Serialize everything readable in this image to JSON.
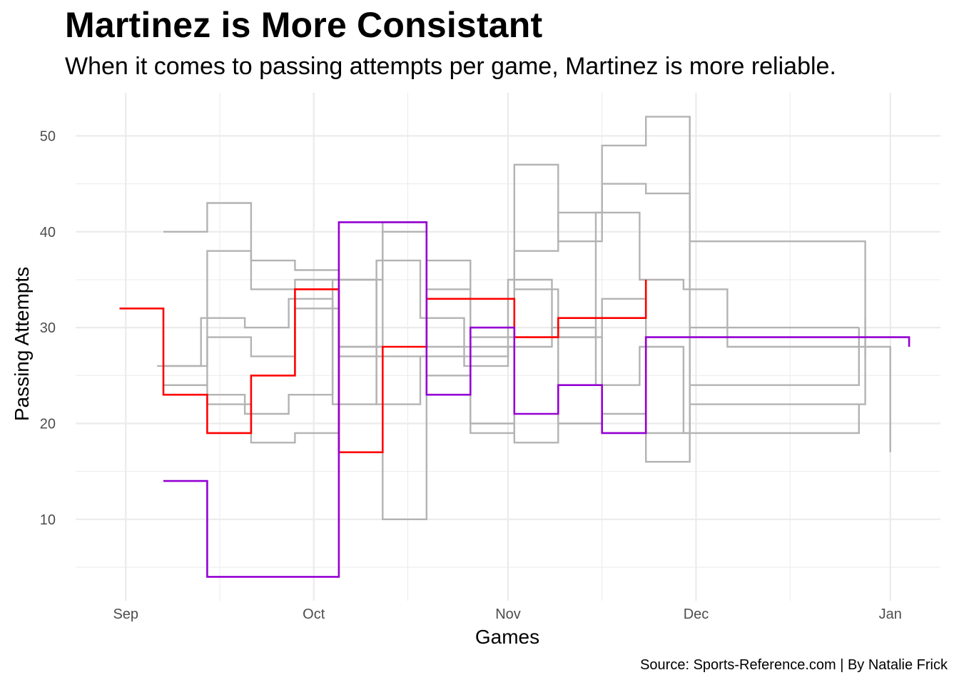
{
  "header": {
    "title": "Martinez is More Consistant",
    "subtitle": "When it comes to passing attempts per game, Martinez is more reliable."
  },
  "caption": "Source: Sports-Reference.com | By Natalie Frick",
  "colors": {
    "background": "#ffffff",
    "grid": "#ebebeb",
    "others": "#b3b3b3",
    "martinez": "#ff0000",
    "highlight2": "#9400d3"
  },
  "chart_data": {
    "type": "line",
    "step": true,
    "xlabel": "Games",
    "ylabel": "Passing Attempts",
    "x_type": "date",
    "xlim": [
      "2019-08-24",
      "2020-01-09"
    ],
    "ylim": [
      1.5,
      54.5
    ],
    "x_ticks": [
      {
        "date": "2019-09-01",
        "label": "Sep"
      },
      {
        "date": "2019-10-01",
        "label": "Oct"
      },
      {
        "date": "2019-11-01",
        "label": "Nov"
      },
      {
        "date": "2019-12-01",
        "label": "Dec"
      },
      {
        "date": "2020-01-01",
        "label": "Jan"
      }
    ],
    "y_ticks": [
      10,
      20,
      30,
      40,
      50
    ],
    "grid": true,
    "legend": "none",
    "background_series": [
      {
        "x": [
          "2019-09-07",
          "2019-09-14",
          "2019-09-21",
          "2019-09-28",
          "2019-10-05",
          "2019-10-12",
          "2019-10-19",
          "2019-10-26",
          "2019-11-02",
          "2019-11-09",
          "2019-11-16",
          "2019-11-23",
          "2019-11-30",
          "2019-12-28"
        ],
        "y": [
          40,
          43,
          37,
          36,
          35,
          40,
          37,
          29,
          38,
          42,
          49,
          52,
          39,
          27
        ]
      },
      {
        "x": [
          "2019-09-07",
          "2019-09-14",
          "2019-09-21",
          "2019-09-28",
          "2019-10-05",
          "2019-10-12",
          "2019-10-19",
          "2019-10-26",
          "2019-11-02",
          "2019-11-09",
          "2019-11-16",
          "2019-11-23",
          "2019-11-30",
          "2019-12-28"
        ],
        "y": [
          26,
          38,
          34,
          35,
          28,
          41,
          34,
          20,
          47,
          39,
          45,
          44,
          22,
          31
        ]
      },
      {
        "x": [
          "2019-09-06",
          "2019-09-13",
          "2019-09-20",
          "2019-09-27",
          "2019-10-04",
          "2019-10-11",
          "2019-10-18",
          "2019-10-25",
          "2019-11-01",
          "2019-11-08",
          "2019-11-15",
          "2019-11-22",
          "2019-11-29",
          "2019-12-06",
          "2020-01-01"
        ],
        "y": [
          26,
          31,
          30,
          33,
          22,
          37,
          31,
          26,
          35,
          29,
          42,
          35,
          34,
          28,
          17
        ]
      },
      {
        "x": [
          "2019-09-07",
          "2019-09-14",
          "2019-09-21",
          "2019-09-28",
          "2019-10-05",
          "2019-10-12",
          "2019-10-19",
          "2019-10-26",
          "2019-11-02",
          "2019-11-09",
          "2019-11-16",
          "2019-11-23",
          "2019-11-30",
          "2019-12-27"
        ],
        "y": [
          24,
          29,
          27,
          32,
          27,
          10,
          25,
          19,
          34,
          20,
          33,
          16,
          24,
          30
        ]
      },
      {
        "x": [
          "2019-09-07",
          "2019-09-14",
          "2019-09-21",
          "2019-09-28",
          "2019-10-05",
          "2019-10-12",
          "2019-10-19",
          "2019-10-26",
          "2019-11-02",
          "2019-11-09",
          "2019-11-16",
          "2019-11-23",
          "2019-11-30",
          "2019-12-27"
        ],
        "y": [
          24,
          22,
          18,
          19,
          28,
          27,
          28,
          28,
          18,
          29,
          21,
          19,
          30,
          30
        ]
      },
      {
        "x": [
          "2019-09-13",
          "2019-09-20",
          "2019-09-27",
          "2019-10-04",
          "2019-10-11",
          "2019-10-18",
          "2019-10-25",
          "2019-11-01",
          "2019-11-08",
          "2019-11-15",
          "2019-11-22",
          "2019-11-29",
          "2019-12-27"
        ],
        "y": [
          23,
          21,
          23,
          35,
          22,
          27,
          27,
          28,
          30,
          24,
          28,
          19,
          22
        ]
      }
    ],
    "series": [
      {
        "color": "#ff0000",
        "x": [
          "2019-08-31",
          "2019-09-07",
          "2019-09-14",
          "2019-09-21",
          "2019-09-28",
          "2019-10-05",
          "2019-10-12",
          "2019-10-19",
          "2019-11-02",
          "2019-11-09",
          "2019-11-23"
        ],
        "y": [
          32,
          23,
          19,
          25,
          34,
          17,
          28,
          33,
          29,
          31,
          35
        ]
      },
      {
        "color": "#9400d3",
        "x": [
          "2019-09-07",
          "2019-09-14",
          "2019-10-05",
          "2019-10-12",
          "2019-10-19",
          "2019-10-26",
          "2019-11-02",
          "2019-11-09",
          "2019-11-16",
          "2019-11-23",
          "2020-01-04"
        ],
        "y": [
          14,
          4,
          41,
          41,
          23,
          30,
          21,
          24,
          19,
          29,
          28
        ]
      }
    ]
  }
}
